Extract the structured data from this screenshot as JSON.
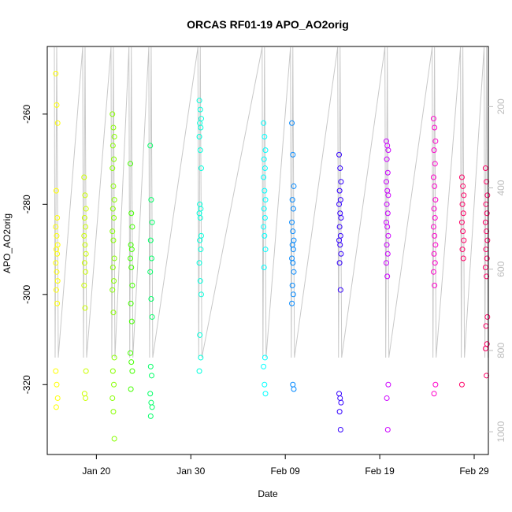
{
  "chart_data": {
    "type": "scatter",
    "title": "ORCAS RF01-19 APO_AO2orig",
    "xlabel": "Date",
    "ylabel": "APO_AO2orig",
    "x_ticks": [
      "Jan 20",
      "Jan 30",
      "Feb 09",
      "Feb 19",
      "Feb 29"
    ],
    "y_ticks": [
      -260,
      -280,
      -300,
      -320
    ],
    "y_right_ticks": [
      200,
      400,
      600,
      800,
      1000
    ],
    "xlim_days": [
      14.8,
      61.5
    ],
    "ylim": [
      -335.5,
      -245
    ],
    "y_right_lim": [
      52,
      1056
    ],
    "grid": false,
    "colors": [
      "#ffff00",
      "#ccff00",
      "#88ff00",
      "#44ff00",
      "#00ff66",
      "#00ffdd",
      "#00ffff",
      "#0088ff",
      "#3300ff",
      "#cc00ff",
      "#ff00cc",
      "#ff0066"
    ],
    "series": [
      {
        "day": 15.8,
        "values": [
          -251,
          -258,
          -262,
          -277,
          -283,
          -285,
          -287,
          -289,
          -290,
          -291,
          -293,
          -295,
          -297,
          -299,
          -302,
          -317,
          -320,
          -323,
          -325
        ]
      },
      {
        "day": 18.8,
        "values": [
          -274,
          -278,
          -281,
          -283,
          -285,
          -287,
          -289,
          -291,
          -293,
          -295,
          -298,
          -303,
          -317,
          -322,
          -323
        ]
      },
      {
        "day": 21.8,
        "values": [
          -260,
          -263,
          -265,
          -267,
          -270,
          -272,
          -276,
          -279,
          -281,
          -283,
          -286,
          -288,
          -292,
          -294,
          -297,
          -299,
          -304,
          -314,
          -317,
          -320,
          -323,
          -326,
          -332
        ]
      },
      {
        "day": 23.7,
        "values": [
          -271,
          -282,
          -285,
          -289,
          -290,
          -292,
          -294,
          -298,
          -302,
          -306,
          -313,
          -315,
          -317,
          -321
        ]
      },
      {
        "day": 25.8,
        "values": [
          -267,
          -279,
          -284,
          -288,
          -292,
          -295,
          -301,
          -305,
          -316,
          -318,
          -322,
          -324,
          -325,
          -327
        ]
      },
      {
        "day": 31.0,
        "values": [
          -257,
          -259,
          -261,
          -262,
          -263,
          -265,
          -268,
          -272,
          -280,
          -281,
          -282,
          -283,
          -287,
          -288,
          -290,
          -293,
          -297,
          -300,
          -309,
          -314,
          -317
        ]
      },
      {
        "day": 37.8,
        "values": [
          -262,
          -265,
          -268,
          -270,
          -272,
          -274,
          -277,
          -279,
          -281,
          -283,
          -285,
          -287,
          -290,
          -294,
          -314,
          -316,
          -320,
          -322
        ]
      },
      {
        "day": 40.8,
        "values": [
          -262,
          -269,
          -276,
          -279,
          -281,
          -284,
          -286,
          -288,
          -289,
          -290,
          -292,
          -293,
          -295,
          -298,
          -300,
          -302,
          -320,
          -321
        ]
      },
      {
        "day": 45.8,
        "values": [
          -269,
          -272,
          -275,
          -277,
          -279,
          -280,
          -282,
          -283,
          -285,
          -287,
          -288,
          -289,
          -291,
          -293,
          -299,
          -322,
          -323,
          -324,
          -326,
          -330
        ]
      },
      {
        "day": 50.8,
        "values": [
          -266,
          -267,
          -268,
          -270,
          -273,
          -275,
          -277,
          -278,
          -280,
          -282,
          -284,
          -285,
          -287,
          -289,
          -291,
          -293,
          -296,
          -320,
          -323,
          -330
        ]
      },
      {
        "day": 55.8,
        "values": [
          -261,
          -263,
          -266,
          -268,
          -271,
          -274,
          -276,
          -279,
          -281,
          -283,
          -285,
          -287,
          -289,
          -291,
          -293,
          -295,
          -298,
          -320,
          -322
        ]
      },
      {
        "day": 58.8,
        "values": [
          -274,
          -276,
          -278,
          -280,
          -282,
          -284,
          -286,
          -288,
          -290,
          -292,
          -320
        ]
      },
      {
        "day": 61.3,
        "values": [
          -272,
          -275,
          -278,
          -280,
          -282,
          -284,
          -286,
          -288,
          -290,
          -292,
          -294,
          -296,
          -305,
          -307,
          -311,
          -312,
          -318
        ]
      }
    ]
  }
}
